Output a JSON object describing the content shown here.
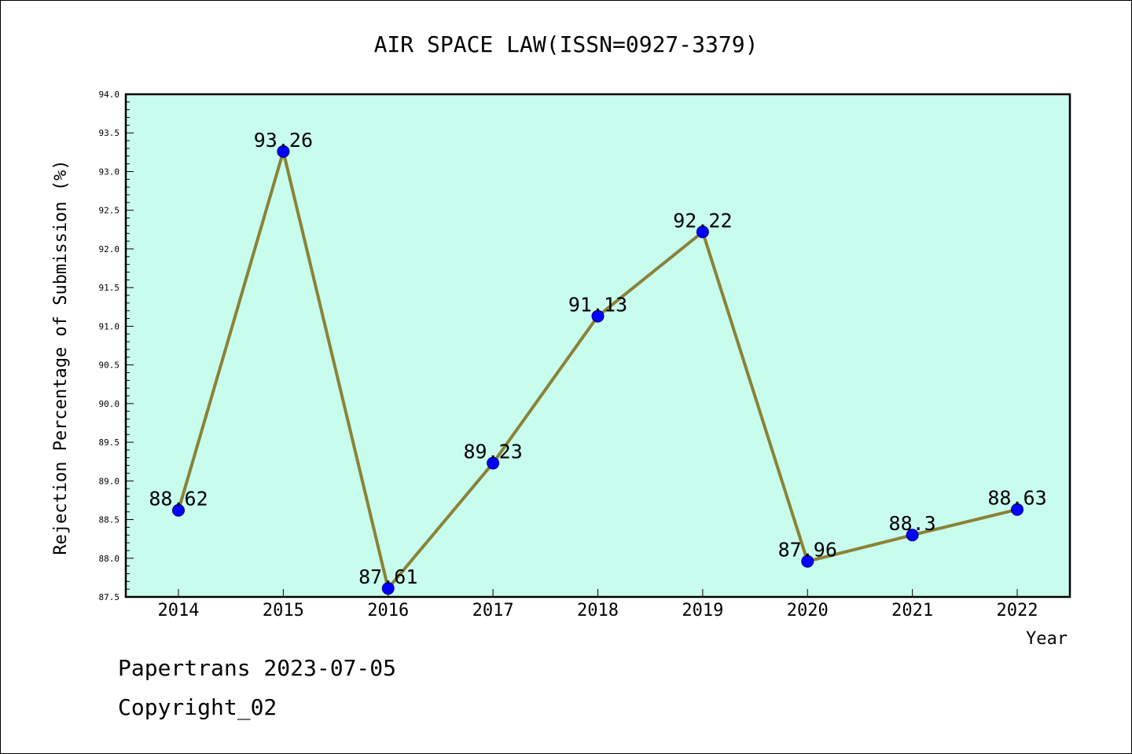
{
  "chart_data": {
    "type": "line",
    "title": "AIR SPACE LAW(ISSN=0927-3379)",
    "xlabel": "Year",
    "ylabel": "Rejection Percentage of Submission (%)",
    "categories": [
      "2014",
      "2015",
      "2016",
      "2017",
      "2018",
      "2019",
      "2020",
      "2021",
      "2022"
    ],
    "values": [
      88.62,
      93.26,
      87.61,
      89.23,
      91.13,
      92.22,
      87.96,
      88.3,
      88.63
    ],
    "data_labels": [
      "88.62",
      "93.26",
      "87.61",
      "89.23",
      "91.13",
      "92.22",
      "87.96",
      "88.3",
      "88.63"
    ],
    "ylim": [
      87.5,
      94.0
    ],
    "yticks": [
      "87.5",
      "88.0",
      "88.5",
      "89.0",
      "89.5",
      "90.0",
      "90.5",
      "91.0",
      "91.5",
      "92.0",
      "92.5",
      "93.0",
      "93.5",
      "94.0"
    ],
    "grid": false,
    "colors": {
      "plot_background": "#c8fced",
      "line": "#8b8237",
      "marker": "#0000ff"
    }
  },
  "footer": {
    "line1": "Papertrans 2023-07-05",
    "line2": "Copyright_02"
  }
}
